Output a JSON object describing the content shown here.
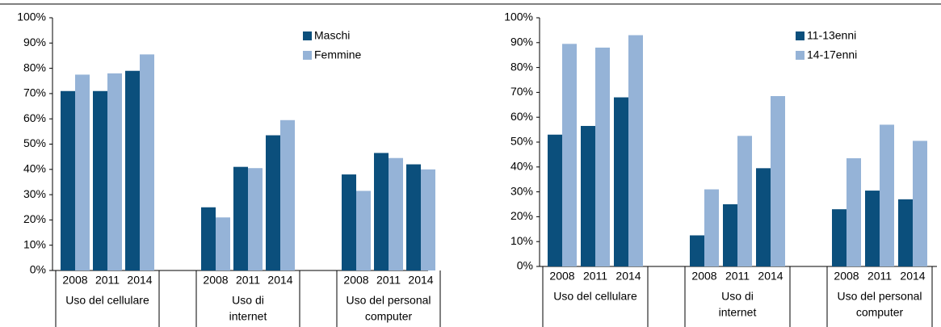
{
  "chart_data": [
    {
      "type": "bar",
      "groups": [
        [
          "Uso del cellulare"
        ],
        [
          "Uso di",
          "internet"
        ],
        [
          "Uso del personal",
          "computer"
        ]
      ],
      "categories": [
        "2008",
        "2011",
        "2014",
        "2008",
        "2011",
        "2014",
        "2008",
        "2011",
        "2014"
      ],
      "series": [
        {
          "name": "Maschi",
          "color": "#0b4f7c",
          "values": [
            71,
            71,
            79,
            25,
            41,
            53.5,
            38,
            46.5,
            42
          ]
        },
        {
          "name": "Femmine",
          "color": "#95b3d7",
          "values": [
            77.5,
            78,
            85.5,
            21,
            40.5,
            59.5,
            31.5,
            44.5,
            40
          ]
        }
      ],
      "ylim": [
        0,
        100
      ],
      "yticks": [
        {
          "value": 0,
          "label": "0%"
        },
        {
          "value": 10,
          "label": "10%"
        },
        {
          "value": 20,
          "label": "20%"
        },
        {
          "value": 30,
          "label": "30%"
        },
        {
          "value": 40,
          "label": "40%"
        },
        {
          "value": 50,
          "label": "50%"
        },
        {
          "value": 60,
          "label": "60%"
        },
        {
          "value": 70,
          "label": "70%"
        },
        {
          "value": 80,
          "label": "80%"
        },
        {
          "value": 90,
          "label": "90%"
        },
        {
          "value": 100,
          "label": "100%"
        }
      ],
      "legend": "upper right"
    },
    {
      "type": "bar",
      "groups": [
        [
          "Uso del cellulare"
        ],
        [
          "Uso di",
          "internet"
        ],
        [
          "Uso del personal",
          "computer"
        ]
      ],
      "categories": [
        "2008",
        "2011",
        "2014",
        "2008",
        "2011",
        "2014",
        "2008",
        "2011",
        "2014"
      ],
      "series": [
        {
          "name": "11-13enni",
          "color": "#0b4f7c",
          "values": [
            53,
            56.5,
            68,
            12.5,
            25,
            39.5,
            23,
            30.5,
            27
          ]
        },
        {
          "name": "14-17enni",
          "color": "#95b3d7",
          "values": [
            89.5,
            88,
            93,
            31,
            52.5,
            68.5,
            43.5,
            57,
            50.5
          ]
        }
      ],
      "ylim": [
        0,
        100
      ],
      "yticks": [
        {
          "value": 0,
          "label": "0%"
        },
        {
          "value": 10,
          "label": "10%"
        },
        {
          "value": 20,
          "label": "20%"
        },
        {
          "value": 30,
          "label": "30%"
        },
        {
          "value": 40,
          "label": "40%"
        },
        {
          "value": 50,
          "label": "50%"
        },
        {
          "value": 60,
          "label": "60%"
        },
        {
          "value": 70,
          "label": "70%"
        },
        {
          "value": 80,
          "label": "80%"
        },
        {
          "value": 90,
          "label": "90%"
        },
        {
          "value": 100,
          "label": "100%"
        }
      ],
      "legend": "upper right"
    }
  ]
}
